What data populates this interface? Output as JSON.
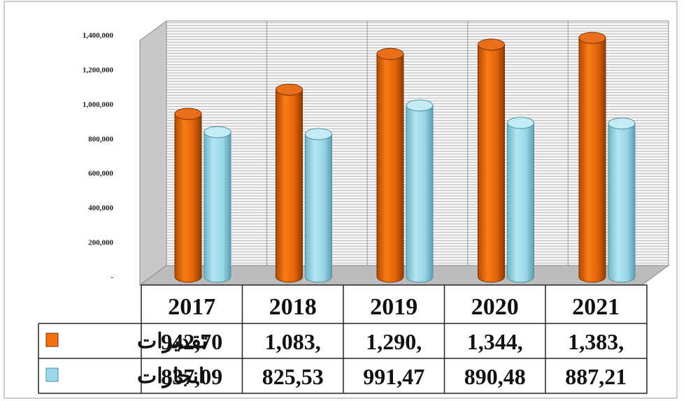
{
  "chart_data": {
    "type": "bar",
    "categories": [
      "2017",
      "2018",
      "2019",
      "2020",
      "2021"
    ],
    "series": [
      {
        "name": "تقديرات",
        "color": "#f36f0d",
        "values": [
          942700,
          1083000,
          1290000,
          1344000,
          1383000
        ],
        "labels": [
          "942,70",
          "1,083,",
          "1,290,",
          "1,344,",
          "1,383,"
        ]
      },
      {
        "name": "انجازات",
        "color": "#99d9ea",
        "values": [
          837090,
          825530,
          991470,
          890480,
          887210
        ],
        "labels": [
          "837,09",
          "825,53",
          "991,47",
          "890,48",
          "887,21"
        ]
      }
    ],
    "ylim": [
      0,
      1400000
    ],
    "yticks": [
      "-",
      "200,000",
      "400,000",
      "600,000",
      "800,000",
      "1,000,000",
      "1,200,000",
      "1,400,000"
    ],
    "ytick_values": [
      0,
      200000,
      400000,
      600000,
      800000,
      1000000,
      1200000,
      1400000
    ],
    "grid": true,
    "style": "3d-cylinder",
    "legend": "data-table-left"
  }
}
